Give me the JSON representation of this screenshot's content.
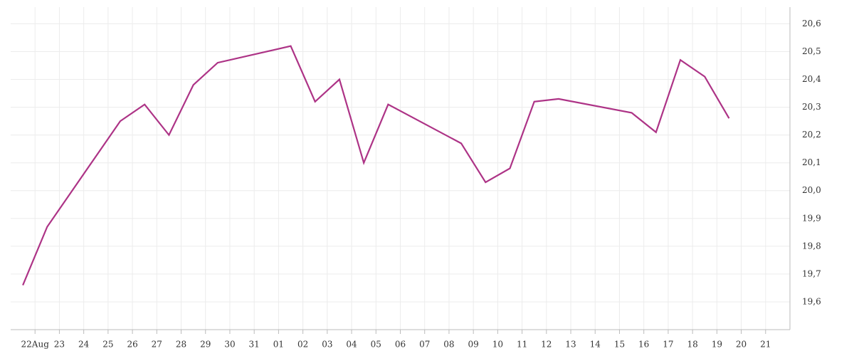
{
  "chart_data": {
    "type": "line",
    "x": [
      -0.5,
      0.5,
      3.5,
      4.5,
      5.5,
      6.5,
      7.5,
      10.5,
      11.5,
      12.5,
      13.5,
      14.5,
      17.5,
      18.5,
      19.5,
      20.5,
      21.5,
      24.5,
      25.5,
      26.5,
      27.5,
      28.5
    ],
    "values": [
      19.66,
      19.87,
      20.25,
      20.31,
      20.2,
      20.38,
      20.46,
      20.52,
      20.32,
      20.4,
      20.1,
      20.31,
      20.17,
      20.03,
      20.08,
      20.32,
      20.33,
      20.28,
      20.21,
      20.47,
      20.41,
      20.26
    ],
    "color": "#ad3386",
    "xlim": [
      -1,
      31
    ],
    "xticks": [
      {
        "value": 0,
        "label": "22Aug"
      },
      {
        "value": 1,
        "label": "23"
      },
      {
        "value": 2,
        "label": "24"
      },
      {
        "value": 3,
        "label": "25"
      },
      {
        "value": 4,
        "label": "26"
      },
      {
        "value": 5,
        "label": "27"
      },
      {
        "value": 6,
        "label": "28"
      },
      {
        "value": 7,
        "label": "29"
      },
      {
        "value": 8,
        "label": "30"
      },
      {
        "value": 9,
        "label": "31"
      },
      {
        "value": 10,
        "label": "01"
      },
      {
        "value": 11,
        "label": "02"
      },
      {
        "value": 12,
        "label": "03"
      },
      {
        "value": 13,
        "label": "04"
      },
      {
        "value": 14,
        "label": "05"
      },
      {
        "value": 15,
        "label": "06"
      },
      {
        "value": 16,
        "label": "07"
      },
      {
        "value": 17,
        "label": "08"
      },
      {
        "value": 18,
        "label": "09"
      },
      {
        "value": 19,
        "label": "10"
      },
      {
        "value": 20,
        "label": "11"
      },
      {
        "value": 21,
        "label": "12"
      },
      {
        "value": 22,
        "label": "13"
      },
      {
        "value": 23,
        "label": "14"
      },
      {
        "value": 24,
        "label": "15"
      },
      {
        "value": 25,
        "label": "16"
      },
      {
        "value": 26,
        "label": "17"
      },
      {
        "value": 27,
        "label": "18"
      },
      {
        "value": 28,
        "label": "19"
      },
      {
        "value": 29,
        "label": "20"
      },
      {
        "value": 30,
        "label": "21"
      }
    ],
    "ylim": [
      19.5,
      20.66
    ],
    "yticks": [
      {
        "value": 19.6,
        "label": "19,6"
      },
      {
        "value": 19.7,
        "label": "19,7"
      },
      {
        "value": 19.8,
        "label": "19,8"
      },
      {
        "value": 19.9,
        "label": "19,9"
      },
      {
        "value": 20.0,
        "label": "20,0"
      },
      {
        "value": 20.1,
        "label": "20,1"
      },
      {
        "value": 20.2,
        "label": "20,2"
      },
      {
        "value": 20.3,
        "label": "20,3"
      },
      {
        "value": 20.4,
        "label": "20,4"
      },
      {
        "value": 20.5,
        "label": "20,5"
      },
      {
        "value": 20.6,
        "label": "20,6"
      }
    ],
    "grid": true
  }
}
